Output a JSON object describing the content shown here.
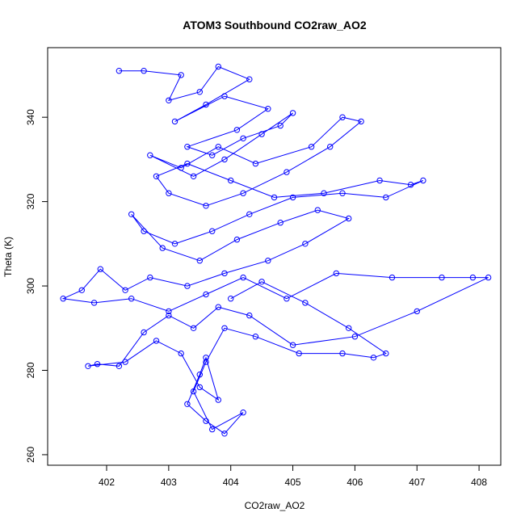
{
  "chart_data": {
    "type": "line",
    "title": "ATOM3 Southbound CO2raw_AO2",
    "xlabel": "CO2raw_AO2",
    "ylabel": "Theta (K)",
    "xlim": [
      401.05,
      408.35
    ],
    "ylim": [
      257.5,
      356.5
    ],
    "x_ticks": [
      "402",
      "403",
      "404",
      "405",
      "406",
      "407",
      "408"
    ],
    "y_ticks": [
      "260",
      "280",
      "300",
      "320",
      "340"
    ],
    "markers": "open-circle",
    "grid": false,
    "series": [
      {
        "color": "#0000ff",
        "x": [
          402.2,
          402.6,
          403.2,
          403.0,
          403.5,
          403.8,
          404.3,
          403.6,
          403.1,
          403.9,
          404.6,
          404.1,
          403.3,
          403.7,
          404.2,
          404.8,
          405.0,
          404.5,
          403.9,
          403.4,
          402.7,
          403.2,
          403.8,
          404.4,
          405.3,
          405.8,
          406.1,
          405.6,
          404.9,
          404.2,
          403.6,
          403.0,
          402.8,
          403.3,
          404.0,
          404.7,
          405.5,
          406.4,
          406.9,
          407.1,
          406.5,
          405.8,
          405.0,
          404.3,
          403.7,
          403.1,
          402.6,
          402.4,
          402.9,
          403.5,
          404.1,
          404.8,
          405.4,
          405.9,
          405.2,
          404.6,
          403.9,
          403.3,
          402.7,
          402.3,
          401.9,
          401.6,
          401.3,
          401.8,
          402.4,
          403.0,
          403.6,
          404.2,
          404.9,
          405.7,
          406.6,
          407.4,
          407.9,
          408.15,
          407.0,
          406.0,
          405.0,
          404.3,
          403.8,
          403.4,
          403.0,
          402.6,
          402.2,
          401.85,
          401.7,
          402.3,
          402.8,
          403.2,
          403.5,
          403.8,
          403.6,
          403.5,
          403.3,
          403.6,
          403.9,
          404.2,
          403.7,
          403.4,
          403.6,
          403.9,
          404.4,
          405.1,
          405.8,
          406.3,
          406.5,
          405.9,
          405.2,
          404.5,
          404.0
        ],
        "y": [
          351,
          351,
          350,
          344,
          346,
          352,
          349,
          343,
          339,
          345,
          342,
          337,
          333,
          331,
          335,
          338,
          341,
          336,
          330,
          326,
          331,
          328,
          333,
          329,
          333,
          340,
          339,
          333,
          327,
          322,
          319,
          322,
          326,
          329,
          325,
          321,
          322,
          325,
          324,
          325,
          321,
          322,
          321,
          317,
          313,
          310,
          313,
          317,
          309,
          306,
          311,
          315,
          318,
          316,
          310,
          306,
          303,
          300,
          302,
          299,
          304,
          299,
          297,
          296,
          297,
          294,
          298,
          302,
          297,
          303,
          302,
          302,
          302,
          302,
          294,
          288,
          286,
          293,
          295,
          290,
          293,
          289,
          281,
          281.5,
          281,
          282,
          287,
          284,
          276,
          273,
          283,
          279,
          272,
          268,
          265,
          270,
          266,
          275,
          282,
          290,
          288,
          284,
          284,
          283,
          284,
          290,
          296,
          301,
          297
        ]
      }
    ]
  }
}
